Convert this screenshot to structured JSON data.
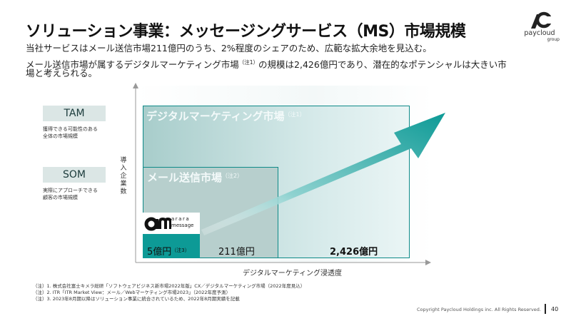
{
  "title": "ソリューション事業：メッセージングサービス（MS）市場規模",
  "body": {
    "line1": "当社サービスはメール送信市場211億円のうち、2%程度のシェアのため、広範な拡大余地を見込む。",
    "line2a": "メール送信市場が属するデジタルマーケティング市場",
    "line2_note": "（注1）",
    "line2b": "の規模は2,426億円であり、潜在的なポテンシャルは大きい市",
    "line3": "場と考えられる。"
  },
  "logo": {
    "name": "paycloud",
    "sub": "group"
  },
  "tam": {
    "label": "TAM",
    "desc_line1": "獲得できる可能性のある",
    "desc_line2": "全体の市場規模"
  },
  "som": {
    "label": "SOM",
    "desc_line1": "実際にアプローチできる",
    "desc_line2": "顧客の市場規模"
  },
  "chart": {
    "y_label": "導入企業数",
    "x_label": "デジタルマーケティング浸透度",
    "tam_title": "デジタルマーケティング市場",
    "tam_note": "（注1）",
    "som_title": "メール送信市場",
    "som_note": "（注2）",
    "company_logo_main": "am",
    "company_logo_text1": "arara",
    "company_logo_text2": "message",
    "value_company": "5億円",
    "value_company_note": "（注3）",
    "value_som": "211億円",
    "value_tam": "2,426億円"
  },
  "footnotes": [
    "（注）1. 株式会社富士キメラ総研「ソフトウェアビジネス新市場2022年版」CX／デジタルマーケティング市場（2022年度見込）",
    "（注）2. ITR「ITR Market View：メール／Webマーケティング市場2023」（2022年度予測）",
    "（注）3. 2023年8月期以降はソリューション事業に統合されているため、2022年8月期実績を記載"
  ],
  "footer": {
    "copyright": "Copyright Paycloud Holdings inc. All Rights Reserved.",
    "page": "40"
  },
  "colors": {
    "accent": "#0d9a96",
    "tam_border": "#0e8a88",
    "label_bg": "#dbe6e5"
  }
}
